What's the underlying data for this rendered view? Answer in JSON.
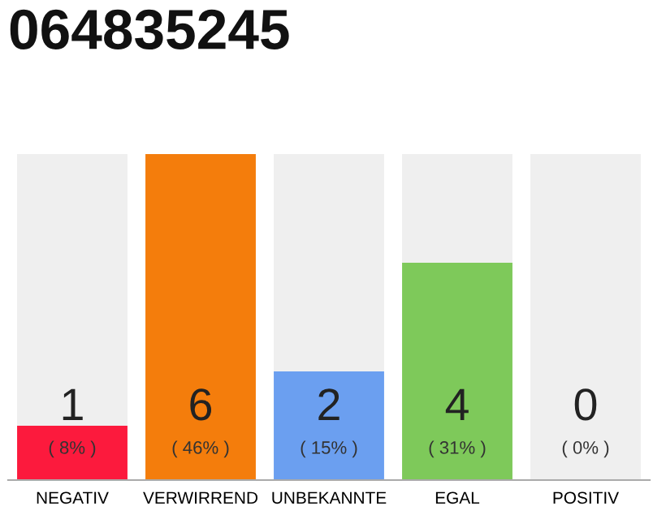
{
  "chart_data": {
    "type": "bar",
    "title": "064835245",
    "categories": [
      "NEGATIV",
      "VERWIRREND",
      "UNBEKANNTE",
      "EGAL",
      "POSITIV"
    ],
    "stacked": true,
    "series": [
      {
        "values": [
          1,
          6,
          2,
          4,
          0
        ],
        "colors": [
          "#fc1a3d",
          "#f47d0c",
          "#6b9ff0",
          "#7ec95a",
          "#efefef"
        ],
        "value_labels": [
          "1\n( 8% )",
          "6\n( 46% )",
          "2\n( 15% )",
          "4\n( 31% )",
          null
        ]
      },
      {
        "values": [
          5,
          0,
          4,
          2,
          6
        ],
        "color": "#efefef"
      }
    ],
    "ylim": [
      0,
      6
    ],
    "annotations": [
      {
        "text": "0\n( 0% )",
        "x": "POSITIV",
        "y": 0
      }
    ],
    "grid": false,
    "legend": false,
    "tick_labels": "x"
  }
}
